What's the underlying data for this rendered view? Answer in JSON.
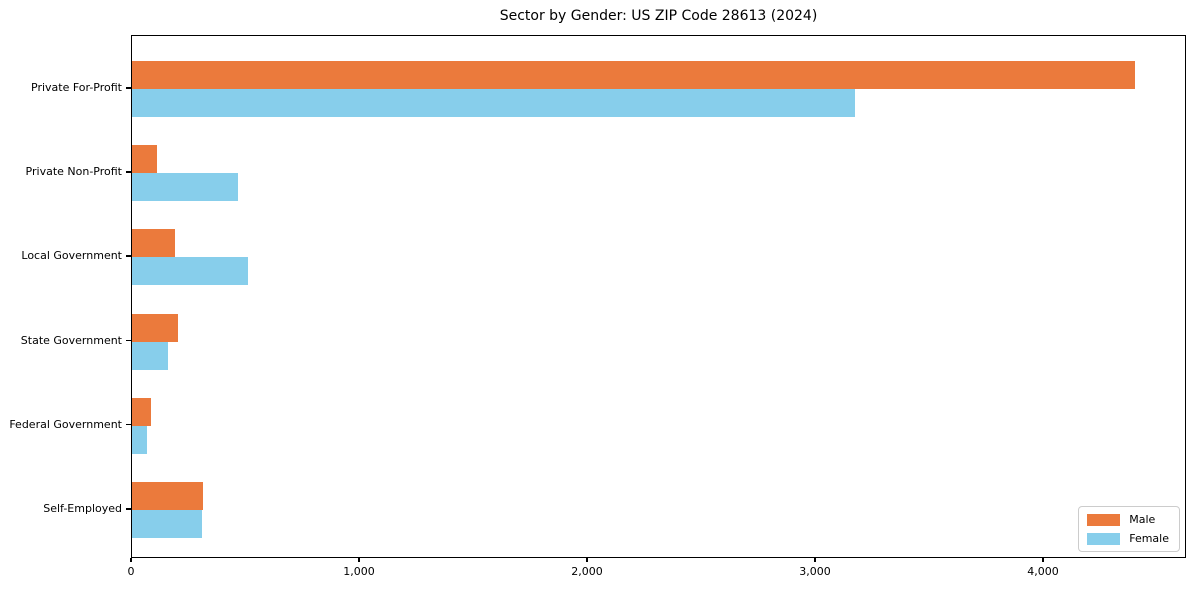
{
  "chart_data": {
    "type": "bar",
    "orientation": "horizontal",
    "title": "Sector by Gender: US ZIP Code 28613 (2024)",
    "categories": [
      "Private For-Profit",
      "Private Non-Profit",
      "Local Government",
      "State Government",
      "Federal Government",
      "Self-Employed"
    ],
    "series": [
      {
        "name": "Male",
        "color": "#EB7A3C",
        "values": [
          4400,
          110,
          190,
          200,
          85,
          310
        ]
      },
      {
        "name": "Female",
        "color": "#87CEEB",
        "values": [
          3170,
          465,
          510,
          160,
          65,
          305
        ]
      }
    ],
    "xlabel": "",
    "ylabel": "",
    "xlim": [
      0,
      4627
    ],
    "xticks": {
      "values": [
        0,
        1000,
        2000,
        3000,
        4000
      ],
      "labels": [
        "0",
        "1,000",
        "2,000",
        "3,000",
        "4,000"
      ]
    },
    "grid": false,
    "legend": {
      "position": "lower right",
      "entries": [
        "Male",
        "Female"
      ]
    }
  }
}
